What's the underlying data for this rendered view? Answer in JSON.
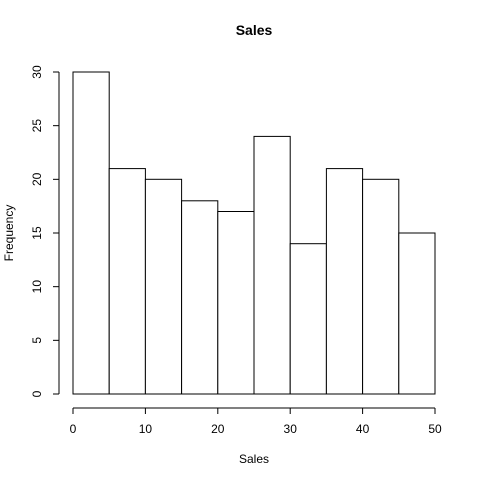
{
  "chart_data": {
    "type": "bar",
    "title": "Sales",
    "xlabel": "Sales",
    "ylabel": "Frequency",
    "bins": [
      [
        0,
        5
      ],
      [
        5,
        10
      ],
      [
        10,
        15
      ],
      [
        15,
        20
      ],
      [
        20,
        25
      ],
      [
        25,
        30
      ],
      [
        30,
        35
      ],
      [
        35,
        40
      ],
      [
        40,
        45
      ],
      [
        45,
        50
      ]
    ],
    "values": [
      30,
      21,
      20,
      18,
      17,
      24,
      14,
      21,
      20,
      15
    ],
    "xlim": [
      0,
      50
    ],
    "ylim": [
      0,
      30
    ],
    "x_ticks": [
      0,
      10,
      20,
      30,
      40,
      50
    ],
    "y_ticks": [
      0,
      5,
      10,
      15,
      20,
      25,
      30
    ],
    "grid": false,
    "legend": "none",
    "bar_fill": "#ffffff",
    "bar_stroke": "#000000"
  }
}
